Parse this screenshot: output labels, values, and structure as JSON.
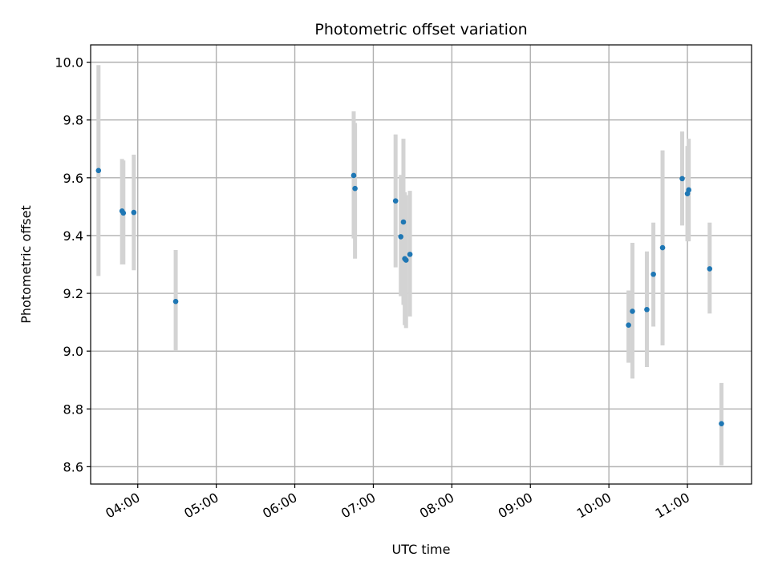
{
  "chart_data": {
    "type": "scatter",
    "title": "Photometric offset variation",
    "xlabel": "UTC time",
    "ylabel": "Photometric offset",
    "xlim": [
      "03:24",
      "11:49"
    ],
    "ylim": [
      8.54,
      10.06
    ],
    "x_ticks": [
      "04:00",
      "05:00",
      "06:00",
      "07:00",
      "08:00",
      "09:00",
      "10:00",
      "11:00"
    ],
    "y_ticks": [
      "8.6",
      "8.8",
      "9.0",
      "9.2",
      "9.4",
      "9.6",
      "9.8",
      "10.0"
    ],
    "grid": true,
    "legend": false,
    "colors": {
      "points": "#1f77b4",
      "error_bars": "#d3d3d3"
    },
    "points": [
      {
        "time": "03:30",
        "y": 9.625,
        "lo": 9.26,
        "hi": 9.99
      },
      {
        "time": "03:48",
        "y": 9.485,
        "lo": 9.3,
        "hi": 9.665
      },
      {
        "time": "03:49",
        "y": 9.478,
        "lo": 9.3,
        "hi": 9.66
      },
      {
        "time": "03:57",
        "y": 9.48,
        "lo": 9.28,
        "hi": 9.68
      },
      {
        "time": "04:29",
        "y": 9.172,
        "lo": 9.0,
        "hi": 9.35
      },
      {
        "time": "06:45",
        "y": 9.608,
        "lo": 9.39,
        "hi": 9.83
      },
      {
        "time": "06:46",
        "y": 9.563,
        "lo": 9.32,
        "hi": 9.79
      },
      {
        "time": "07:17",
        "y": 9.52,
        "lo": 9.29,
        "hi": 9.75
      },
      {
        "time": "07:21",
        "y": 9.396,
        "lo": 9.19,
        "hi": 9.61
      },
      {
        "time": "07:23",
        "y": 9.447,
        "lo": 9.16,
        "hi": 9.735
      },
      {
        "time": "07:24",
        "y": 9.32,
        "lo": 9.09,
        "hi": 9.55
      },
      {
        "time": "07:25",
        "y": 9.315,
        "lo": 9.08,
        "hi": 9.54
      },
      {
        "time": "07:28",
        "y": 9.335,
        "lo": 9.12,
        "hi": 9.555
      },
      {
        "time": "10:15",
        "y": 9.09,
        "lo": 8.96,
        "hi": 9.21
      },
      {
        "time": "10:18",
        "y": 9.138,
        "lo": 8.905,
        "hi": 9.375
      },
      {
        "time": "10:29",
        "y": 9.144,
        "lo": 8.945,
        "hi": 9.345
      },
      {
        "time": "10:34",
        "y": 9.266,
        "lo": 9.085,
        "hi": 9.445
      },
      {
        "time": "10:41",
        "y": 9.358,
        "lo": 9.02,
        "hi": 9.695
      },
      {
        "time": "10:56",
        "y": 9.597,
        "lo": 9.435,
        "hi": 9.76
      },
      {
        "time": "11:00",
        "y": 9.545,
        "lo": 9.38,
        "hi": 9.71
      },
      {
        "time": "11:01",
        "y": 9.558,
        "lo": 9.38,
        "hi": 9.735
      },
      {
        "time": "11:17",
        "y": 9.285,
        "lo": 9.13,
        "hi": 9.445
      },
      {
        "time": "11:26",
        "y": 8.749,
        "lo": 8.605,
        "hi": 8.89
      }
    ]
  }
}
